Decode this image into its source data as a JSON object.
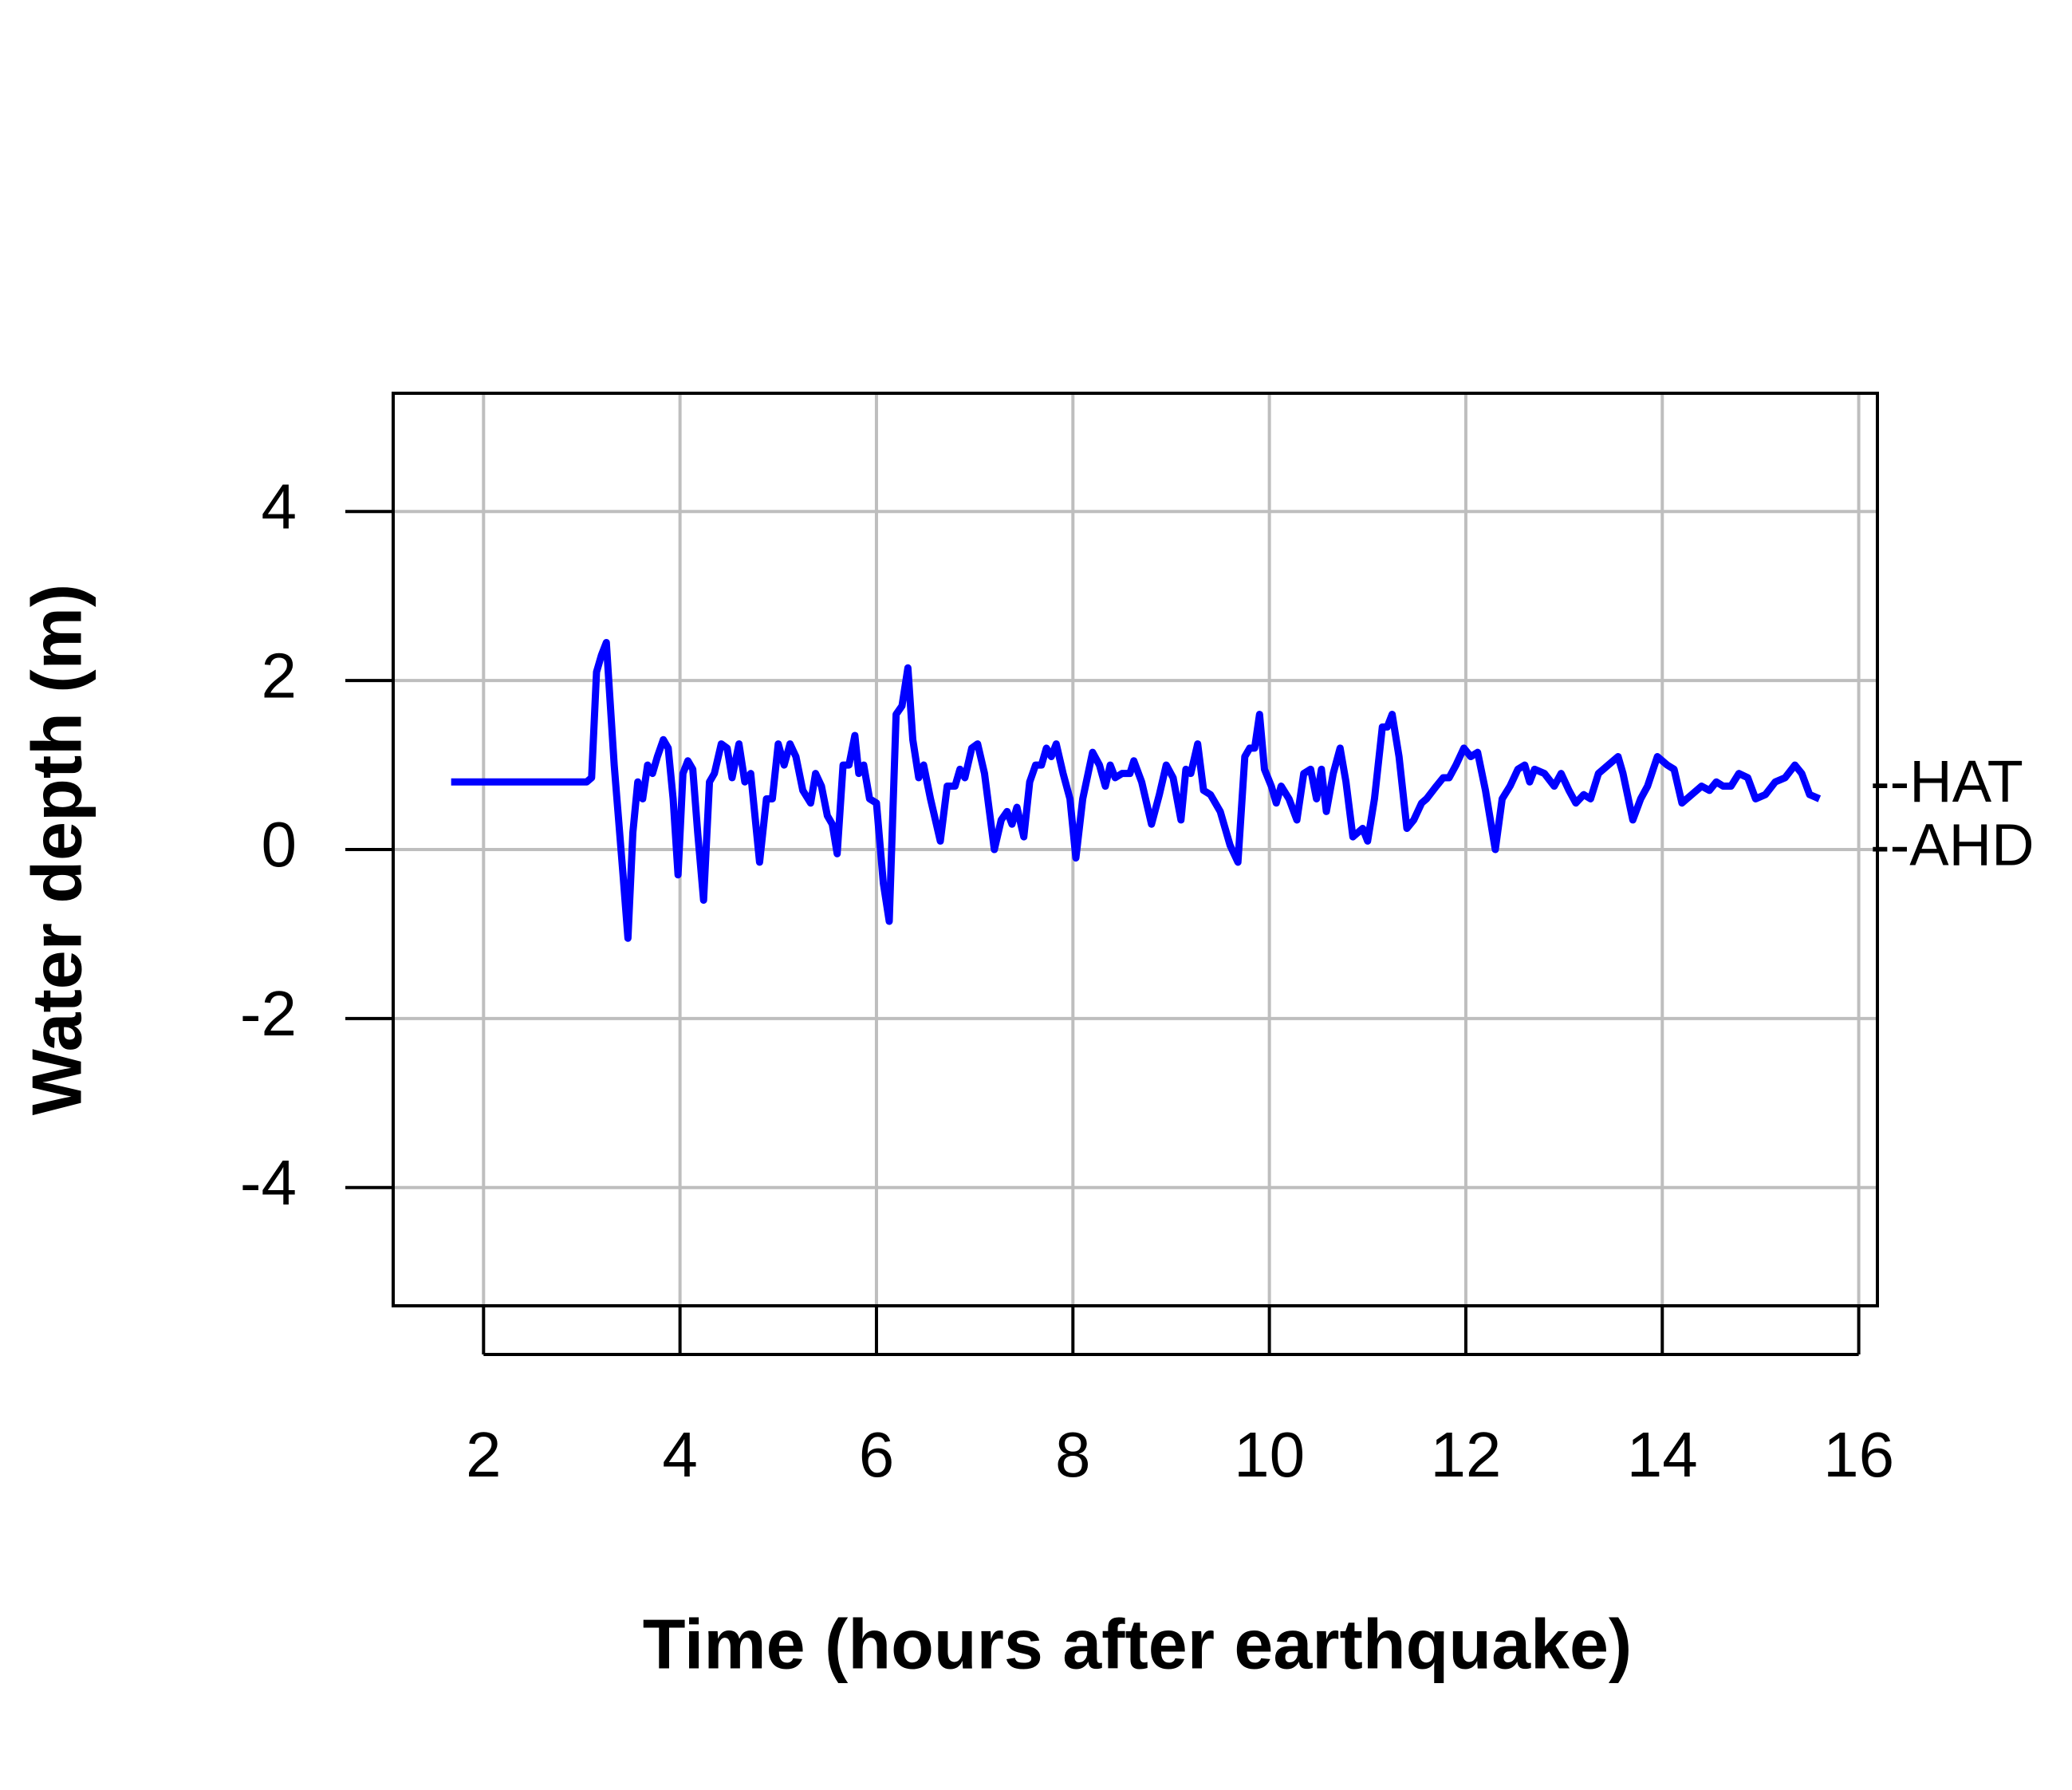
{
  "chart_data": {
    "type": "line",
    "x_label": "Time (hours after earthquake)",
    "y_label": "Water depth (m)",
    "xlim": [
      1.08,
      16.19
    ],
    "ylim": [
      -5.4,
      5.4
    ],
    "xticks": [
      2,
      4,
      6,
      8,
      10,
      12,
      14,
      16
    ],
    "yticks": [
      -4,
      -2,
      0,
      2,
      4
    ],
    "grid": true,
    "annotations": [
      {
        "label": "--HAT",
        "value": 0.75
      },
      {
        "label": "--AHD",
        "value": 0
      }
    ],
    "x": [
      1.67,
      3.05,
      3.1,
      3.15,
      3.2,
      3.25,
      3.33,
      3.42,
      3.47,
      3.52,
      3.57,
      3.62,
      3.67,
      3.72,
      3.77,
      3.83,
      3.88,
      3.93,
      3.98,
      4.03,
      4.08,
      4.13,
      4.18,
      4.24,
      4.3,
      4.35,
      4.42,
      4.48,
      4.53,
      4.6,
      4.66,
      4.72,
      4.81,
      4.88,
      4.94,
      5.0,
      5.06,
      5.12,
      5.18,
      5.25,
      5.33,
      5.38,
      5.44,
      5.5,
      5.55,
      5.6,
      5.66,
      5.72,
      5.78,
      5.82,
      5.87,
      5.93,
      6.0,
      6.07,
      6.13,
      6.2,
      6.26,
      6.32,
      6.37,
      6.43,
      6.48,
      6.55,
      6.65,
      6.72,
      6.8,
      6.85,
      6.9,
      6.97,
      7.03,
      7.1,
      7.2,
      7.27,
      7.33,
      7.38,
      7.43,
      7.5,
      7.56,
      7.62,
      7.68,
      7.73,
      7.78,
      7.83,
      7.9,
      7.97,
      8.03,
      8.1,
      8.2,
      8.27,
      8.33,
      8.38,
      8.43,
      8.5,
      8.58,
      8.62,
      8.7,
      8.8,
      8.88,
      8.95,
      9.02,
      9.1,
      9.15,
      9.2,
      9.27,
      9.33,
      9.4,
      9.5,
      9.6,
      9.68,
      9.75,
      9.8,
      9.85,
      9.9,
      9.95,
      10.02,
      10.07,
      10.12,
      10.2,
      10.28,
      10.35,
      10.42,
      10.48,
      10.53,
      10.58,
      10.65,
      10.72,
      10.78,
      10.85,
      10.95,
      11.0,
      11.07,
      11.15,
      11.2,
      11.25,
      11.32,
      11.4,
      11.47,
      11.55,
      11.6,
      11.7,
      11.77,
      11.83,
      11.9,
      11.98,
      12.05,
      12.12,
      12.2,
      12.3,
      12.37,
      12.45,
      12.53,
      12.6,
      12.65,
      12.7,
      12.8,
      12.9,
      12.97,
      13.05,
      13.12,
      13.2,
      13.27,
      13.35,
      13.45,
      13.55,
      13.6,
      13.7,
      13.78,
      13.85,
      13.95,
      14.05,
      14.12,
      14.2,
      14.3,
      14.4,
      14.48,
      14.55,
      14.62,
      14.7,
      14.78,
      14.87,
      14.95,
      15.05,
      15.15,
      15.25,
      15.35,
      15.42,
      15.5,
      15.6
    ],
    "series": [
      {
        "color": "#0000ff",
        "values": [
          0.8,
          0.8,
          0.85,
          2.1,
          2.3,
          2.45,
          1.0,
          -0.3,
          -1.05,
          0.2,
          0.8,
          0.6,
          1.0,
          0.9,
          1.1,
          1.3,
          1.2,
          0.6,
          -0.3,
          0.9,
          1.05,
          0.95,
          0.2,
          -0.6,
          0.8,
          0.9,
          1.25,
          1.2,
          0.85,
          1.25,
          0.8,
          0.9,
          -0.15,
          0.6,
          0.6,
          1.25,
          1.0,
          1.25,
          1.1,
          0.7,
          0.55,
          0.9,
          0.75,
          0.4,
          0.3,
          -0.05,
          1.0,
          1.0,
          1.35,
          0.9,
          1.0,
          0.6,
          0.55,
          -0.4,
          -0.85,
          1.6,
          1.7,
          2.15,
          1.3,
          0.85,
          1.0,
          0.6,
          0.1,
          0.75,
          0.75,
          0.95,
          0.85,
          1.2,
          1.25,
          0.9,
          0.0,
          0.35,
          0.45,
          0.3,
          0.5,
          0.15,
          0.8,
          1.0,
          1.0,
          1.2,
          1.1,
          1.25,
          0.9,
          0.6,
          -0.1,
          0.6,
          1.15,
          1.0,
          0.75,
          1.0,
          0.85,
          0.9,
          0.9,
          1.05,
          0.8,
          0.3,
          0.65,
          1.0,
          0.85,
          0.35,
          0.95,
          0.9,
          1.25,
          0.7,
          0.65,
          0.45,
          0.05,
          -0.15,
          1.1,
          1.2,
          1.2,
          1.6,
          0.95,
          0.75,
          0.55,
          0.75,
          0.6,
          0.35,
          0.9,
          0.95,
          0.6,
          0.95,
          0.45,
          0.9,
          1.2,
          0.8,
          0.15,
          0.25,
          0.1,
          0.6,
          1.45,
          1.45,
          1.6,
          1.1,
          0.25,
          0.35,
          0.55,
          0.6,
          0.75,
          0.85,
          0.85,
          1.0,
          1.2,
          1.1,
          1.15,
          0.7,
          0.0,
          0.6,
          0.75,
          0.95,
          1.0,
          0.8,
          0.95,
          0.9,
          0.75,
          0.9,
          0.7,
          0.55,
          0.65,
          0.6,
          0.9,
          1.0,
          1.1,
          0.9,
          0.35,
          0.6,
          0.75,
          1.1,
          1.0,
          0.95,
          0.55,
          0.65,
          0.75,
          0.7,
          0.8,
          0.75,
          0.75,
          0.9,
          0.85,
          0.6,
          0.65,
          0.8,
          0.85,
          1.0,
          0.9,
          0.65,
          0.6
        ]
      }
    ]
  }
}
